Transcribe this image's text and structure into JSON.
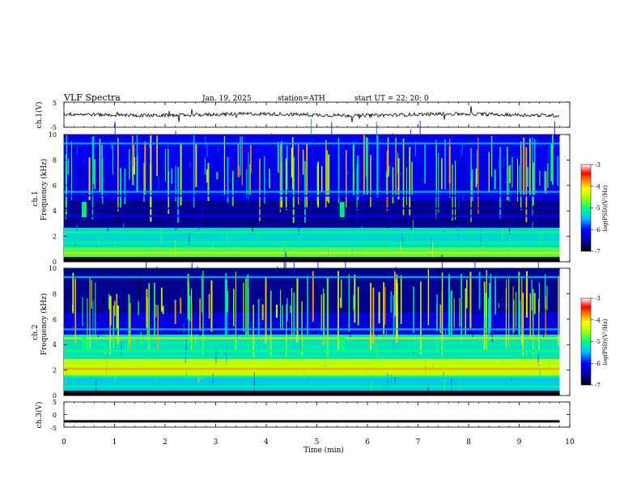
{
  "header": {
    "title": "VLF  Spectra",
    "date": "Jan. 19, 2025",
    "station": "station=ATH",
    "start_ut": "start  UT  =   22: 20: 0"
  },
  "colors": {
    "black": "#000000",
    "dark_blue": "#00008b",
    "blue": "#0000ff",
    "light_blue": "#1e90ff",
    "cyan": "#00e5ff",
    "green": "#00ff66",
    "yellow_green": "#aaff00",
    "yellow": "#ffff00",
    "orange": "#ff8c00",
    "red": "#ff0000",
    "pink": "#ffb6c1",
    "white": "#ffffff"
  },
  "chart_data": [
    {
      "type": "line",
      "panel": "ch1-waveform",
      "ylabel": "ch.1(V)",
      "ylim": [
        -5,
        5
      ],
      "yticks": [
        "5",
        "-5"
      ],
      "trace_level": 0,
      "description_of_values": "noise trace near 0 V"
    },
    {
      "type": "heatmap",
      "panel": "ch1-spectrogram",
      "ylabel": "ch.1\nFrequency  (kHz)",
      "ylim": [
        0,
        10
      ],
      "yticks": [
        "0",
        "2",
        "4",
        "6",
        "8",
        "10"
      ],
      "xlim": [
        0,
        10
      ],
      "bands_khz": [
        {
          "f": 0.7,
          "level": -4
        },
        {
          "f": 1.5,
          "level": -5
        },
        {
          "f": 2.3,
          "level": -5
        },
        {
          "f": 3.6,
          "level": -6
        },
        {
          "f": 4.2,
          "level": -6.5
        },
        {
          "f": 5.2,
          "level": -6
        },
        {
          "f": 5.5,
          "level": -5.5
        },
        {
          "f": 9.3,
          "level": -5.5
        }
      ],
      "colorbar": {
        "label": "log(PSD)(V²/Hz)",
        "ticks": [
          "-3",
          "-4",
          "-5",
          "-6",
          "-7"
        ],
        "range": [
          -7,
          -3
        ]
      }
    },
    {
      "type": "heatmap",
      "panel": "ch2-spectrogram",
      "ylabel": "ch.2\nFrequency  (kHz)",
      "ylim": [
        0,
        10
      ],
      "yticks": [
        "0",
        "2",
        "4",
        "6",
        "8",
        "10"
      ],
      "xlim": [
        0,
        10
      ],
      "bands_khz": [
        {
          "f": 0.7,
          "level": -5
        },
        {
          "f": 1.5,
          "level": -5
        },
        {
          "f": 2.1,
          "level": -3.8
        },
        {
          "f": 2.5,
          "level": -4.5
        },
        {
          "f": 3.5,
          "level": -5
        },
        {
          "f": 4.5,
          "level": -4.5
        },
        {
          "f": 5.2,
          "level": -5.5
        },
        {
          "f": 9.3,
          "level": -5.5
        }
      ],
      "colorbar": {
        "label": "log(PSD)(V²/Hz)",
        "ticks": [
          "-3",
          "-4",
          "-5",
          "-6",
          "-7"
        ],
        "range": [
          -7,
          -3
        ]
      }
    },
    {
      "type": "line",
      "panel": "ch3-waveform",
      "ylabel": "ch.3(V)",
      "ylim": [
        -5,
        5
      ],
      "yticks": [
        "5",
        "0",
        "-5"
      ],
      "trace_level": -2.7
    }
  ],
  "xaxis": {
    "label": "Time  (min)",
    "ticks": [
      "0",
      "1",
      "2",
      "3",
      "4",
      "5",
      "6",
      "7",
      "8",
      "9",
      "10"
    ],
    "range": [
      0,
      10
    ],
    "data_end": 9.8
  },
  "ch1_ylabel_top": "ch.1",
  "ch1_ylabel_bottom": "Frequency  (kHz)",
  "ch2_ylabel_top": "ch.2",
  "ch2_ylabel_bottom": "Frequency  (kHz)",
  "cbar_label": "log(PSD)(V²/Hz)"
}
